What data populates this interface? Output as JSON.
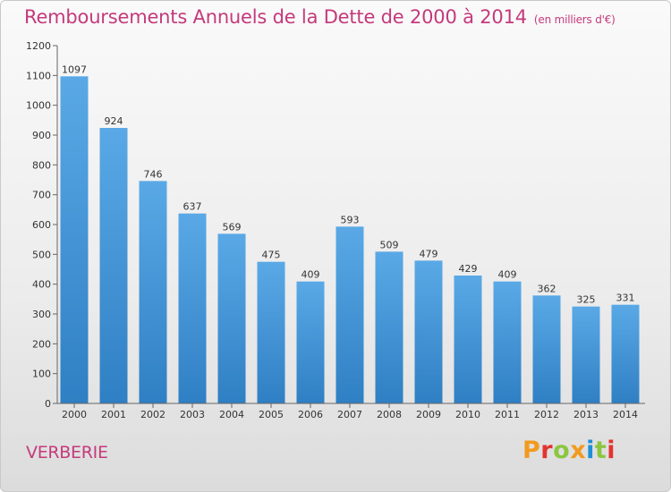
{
  "header": {
    "title": "Remboursements Annuels de la Dette de 2000 à 2014",
    "subtitle": "(en milliers d'€)"
  },
  "footer": {
    "town": "VERBERIE",
    "logo_text": "Proxiti"
  },
  "colors": {
    "title": "#c43a7c",
    "bar_top": "#5aa9e6",
    "bar_bottom": "#2f7fc4",
    "logo_letters": [
      "#f29a1f",
      "#e3342f",
      "#8cc63f",
      "#f29a1f",
      "#1e8fd6",
      "#8cc63f",
      "#e3342f"
    ]
  },
  "chart_data": {
    "type": "bar",
    "title": "Remboursements Annuels de la Dette de 2000 à 2014",
    "subtitle": "(en milliers d'€)",
    "xlabel": "",
    "ylabel": "",
    "categories": [
      "2000",
      "2001",
      "2002",
      "2003",
      "2004",
      "2005",
      "2006",
      "2007",
      "2008",
      "2009",
      "2010",
      "2011",
      "2012",
      "2013",
      "2014"
    ],
    "values": [
      1097,
      924,
      746,
      637,
      569,
      475,
      409,
      593,
      509,
      479,
      429,
      409,
      362,
      325,
      331
    ],
    "ylim": [
      0,
      1200
    ],
    "yticks": [
      0,
      100,
      200,
      300,
      400,
      500,
      600,
      700,
      800,
      900,
      1000,
      1100,
      1200
    ],
    "grid": false,
    "data_labels": true
  }
}
